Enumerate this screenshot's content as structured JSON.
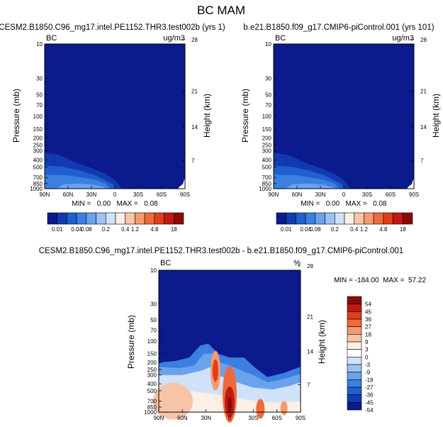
{
  "figure": {
    "title": "BC MAM",
    "variable_label": "BC"
  },
  "colors": {
    "cbar_top": [
      "#0b1a8c",
      "#123ab0",
      "#1f5fd0",
      "#3b7fe0",
      "#6aa2ec",
      "#9cc3f4",
      "#cfe2fa",
      "#fbefe6",
      "#f8c4a8",
      "#f49a70",
      "#ee6a3c",
      "#e03e1a",
      "#c01b10",
      "#8b0a06"
    ],
    "cbar_diff": [
      "#0b1a8c",
      "#123ab0",
      "#1f5fd0",
      "#3b7fe0",
      "#6aa2ec",
      "#9cc3f4",
      "#cfe2fa",
      "#ffffff",
      "#fbefe6",
      "#f8c4a8",
      "#f49a70",
      "#ee6a3c",
      "#e03e1a",
      "#c01b10",
      "#8b0a06"
    ]
  },
  "chart_data": [
    {
      "type": "heatmap",
      "title": "CESM2.B1850.C96_mg17.intel.PE1152.THR3.test002b (yrs 1)",
      "units": "ug/m3",
      "ylabel": "Pressure (mb)",
      "ylabel_right": "Height (km)",
      "x_ticks": [
        "90N",
        "60N",
        "30N",
        "0",
        "30S",
        "60S",
        "90S"
      ],
      "y_ticks": [
        "10",
        "30",
        "50",
        "70",
        "100",
        "150",
        "200",
        "250",
        "300",
        "400",
        "500",
        "700",
        "850",
        "1000"
      ],
      "y_ticks_right": [
        "28",
        "21",
        "14",
        "7"
      ],
      "min": 0.0,
      "max": 0.08,
      "stats_label": "MIN =   0.00   MAX =   0.08",
      "colorbar_levels": [
        "0.01",
        "0.04",
        "0.08",
        "0.2",
        "0.4",
        "1.2",
        "4.8",
        "18"
      ],
      "colorbar_orientation": "horizontal"
    },
    {
      "type": "heatmap",
      "title": "b.e21.B1850.f09_g17.CMIP6-piControl.001 (yrs 101)",
      "units": "ug/m3",
      "ylabel": "Pressure (mb)",
      "ylabel_right": "Height (km)",
      "x_ticks": [
        "90N",
        "60N",
        "30N",
        "0",
        "30S",
        "60S",
        "90S"
      ],
      "y_ticks": [
        "10",
        "30",
        "50",
        "70",
        "100",
        "150",
        "200",
        "250",
        "300",
        "400",
        "500",
        "700",
        "850",
        "1000"
      ],
      "y_ticks_right": [
        "28",
        "21",
        "14",
        "7"
      ],
      "min": 0.0,
      "max": 0.08,
      "stats_label": "MIN =   0.00   MAX =   0.08",
      "colorbar_levels": [
        "0.01",
        "0.04",
        "0.08",
        "0.2",
        "0.4",
        "1.2",
        "4.8",
        "18"
      ],
      "colorbar_orientation": "horizontal"
    },
    {
      "type": "heatmap",
      "title": "CESM2.B1850.C96_mg17.intel.PE1152.THR3.test002b - b.e21.B1850.f09_g17.CMIP6-piControl.001",
      "units": "%",
      "ylabel": "Pressure (mb)",
      "ylabel_right": "Height (km)",
      "x_ticks": [
        "90N",
        "60N",
        "30N",
        "0",
        "30S",
        "60S",
        "90S"
      ],
      "y_ticks": [
        "10",
        "30",
        "50",
        "70",
        "100",
        "150",
        "200",
        "250",
        "300",
        "400",
        "500",
        "700",
        "850",
        "1000"
      ],
      "y_ticks_right": [
        "28",
        "21",
        "14",
        "7"
      ],
      "min": -184.0,
      "max": 57.22,
      "stats_label": "MIN = -184.00  MAX =  57.22",
      "colorbar_levels": [
        "54",
        "45",
        "36",
        "27",
        "18",
        "9",
        "3",
        "0",
        "-3",
        "-9",
        "-18",
        "-27",
        "-36",
        "-45",
        "-54"
      ],
      "colorbar_orientation": "vertical"
    }
  ]
}
